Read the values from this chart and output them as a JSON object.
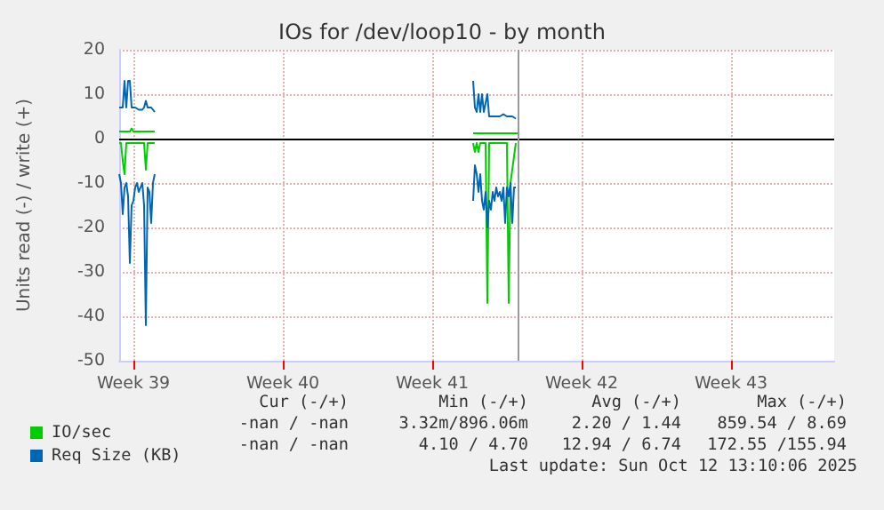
{
  "chart_data": {
    "type": "line",
    "title": "IOs for /dev/loop10 - by month",
    "ylabel": "Units read (-) / write (+)",
    "xlim": [
      "2025-09-23T20:00",
      "2025-10-27T08:00"
    ],
    "xticks": [
      {
        "value": "2025-09-24T12:00",
        "label": "Week 39"
      },
      {
        "value": "2025-10-01T12:00",
        "label": "Week 40"
      },
      {
        "value": "2025-10-08T12:00",
        "label": "Week 41"
      },
      {
        "value": "2025-10-15T12:00",
        "label": "Week 42"
      },
      {
        "value": "2025-10-22T12:00",
        "label": "Week 43"
      }
    ],
    "ylim": [
      -50,
      20
    ],
    "yticks": [
      -50,
      -40,
      -30,
      -20,
      -10,
      0,
      10,
      20
    ],
    "grid": true,
    "legend": "bottom left",
    "series": [
      {
        "name": "IO/sec",
        "color": "#00cc00",
        "x": [
          "2025-09-23T20:00",
          "2025-09-24T04:00",
          "2025-09-24T08:00",
          "2025-09-24T10:00",
          "2025-09-24T12:00",
          "2025-09-24T18:00",
          "2025-09-25T02:00",
          "2025-09-25T12:00",
          "2025-10-02T12:00",
          "2025-10-10T10:00",
          "2025-10-11T00:00",
          "2025-10-11T12:00",
          "2025-10-12T00:00",
          "2025-10-12T12:00"
        ],
        "values": [
          1.6,
          1.6,
          1.6,
          2.3,
          1.6,
          1.6,
          1.6,
          1.6,
          null,
          1.2,
          1.2,
          1.2,
          1.2,
          1.2
        ]
      },
      {
        "color": "#00cc00",
        "x": [
          "2025-09-23T20:00",
          "2025-09-23T22:00",
          "2025-09-24T00:00",
          "2025-09-24T02:00",
          "2025-09-24T04:00",
          "2025-09-24T06:00",
          "2025-09-24T10:00",
          "2025-09-24T12:00",
          "2025-09-24T18:00",
          "2025-09-25T00:00",
          "2025-09-25T02:00",
          "2025-09-25T04:00",
          "2025-09-25T12:00",
          "2025-10-02T12:00",
          "2025-10-10T10:00",
          "2025-10-10T12:00",
          "2025-10-10T14:00",
          "2025-10-10T16:00",
          "2025-10-10T18:00",
          "2025-10-10T22:00",
          "2025-10-11T00:00",
          "2025-10-11T02:00",
          "2025-10-11T04:00",
          "2025-10-11T08:00",
          "2025-10-11T18:00",
          "2025-10-12T00:00",
          "2025-10-12T02:00",
          "2025-10-12T04:00",
          "2025-10-12T10:00"
        ],
        "values": [
          -1,
          -1,
          -5,
          -8,
          -1,
          -1,
          -1,
          -1,
          -1,
          -1,
          -7,
          -1,
          -1,
          null,
          -1,
          -3,
          -1,
          -3,
          -1,
          -1,
          -1,
          -37,
          -1,
          -1,
          -1,
          -1,
          -37,
          -10,
          -1
        ]
      },
      {
        "name": "Req Size (KB)",
        "color": "#0066b3",
        "x": [
          "2025-09-23T20:00",
          "2025-09-24T00:00",
          "2025-09-24T02:00",
          "2025-09-24T04:00",
          "2025-09-24T06:00",
          "2025-09-24T08:00",
          "2025-09-24T10:00",
          "2025-09-24T14:00",
          "2025-09-24T18:00",
          "2025-09-24T22:00",
          "2025-09-25T00:00",
          "2025-09-25T02:00",
          "2025-09-25T04:00",
          "2025-09-25T08:00",
          "2025-09-25T10:00",
          "2025-09-25T12:00",
          "2025-10-02T12:00",
          "2025-10-10T10:00",
          "2025-10-10T12:00",
          "2025-10-10T14:00",
          "2025-10-10T16:00",
          "2025-10-10T18:00",
          "2025-10-10T20:00",
          "2025-10-10T22:00",
          "2025-10-11T02:00",
          "2025-10-11T04:00",
          "2025-10-11T06:00",
          "2025-10-11T12:00",
          "2025-10-11T16:00",
          "2025-10-11T20:00",
          "2025-10-12T00:00",
          "2025-10-12T06:00",
          "2025-10-12T10:00"
        ],
        "values": [
          7,
          7,
          13,
          7,
          13,
          13,
          7,
          7,
          6.5,
          6.5,
          7,
          8.5,
          7,
          7,
          6.5,
          6,
          null,
          13,
          7,
          6,
          10,
          6,
          10,
          6,
          10,
          5,
          5,
          5,
          5,
          5.5,
          5,
          5,
          4.5
        ]
      },
      {
        "color": "#0066b3",
        "x": [
          "2025-09-23T20:00",
          "2025-09-23T22:00",
          "2025-09-24T00:00",
          "2025-09-24T02:00",
          "2025-09-24T04:00",
          "2025-09-24T06:00",
          "2025-09-24T08:00",
          "2025-09-24T10:00",
          "2025-09-24T12:00",
          "2025-09-24T14:00",
          "2025-09-24T16:00",
          "2025-09-24T18:00",
          "2025-09-24T20:00",
          "2025-09-24T22:00",
          "2025-09-25T00:00",
          "2025-09-25T02:00",
          "2025-09-25T04:00",
          "2025-09-25T06:00",
          "2025-09-25T08:00",
          "2025-09-25T10:00",
          "2025-09-25T12:00",
          "2025-10-02T12:00",
          "2025-10-10T10:00",
          "2025-10-10T12:00",
          "2025-10-10T14:00",
          "2025-10-10T16:00",
          "2025-10-10T18:00",
          "2025-10-10T20:00",
          "2025-10-10T22:00",
          "2025-10-11T00:00",
          "2025-10-11T02:00",
          "2025-10-11T04:00",
          "2025-10-11T06:00",
          "2025-10-11T08:00",
          "2025-10-11T10:00",
          "2025-10-11T12:00",
          "2025-10-11T14:00",
          "2025-10-11T16:00",
          "2025-10-11T18:00",
          "2025-10-11T20:00",
          "2025-10-11T22:00",
          "2025-10-12T00:00",
          "2025-10-12T02:00",
          "2025-10-12T04:00",
          "2025-10-12T06:00",
          "2025-10-12T08:00",
          "2025-10-12T10:00"
        ],
        "values": [
          -8,
          -10,
          -17,
          -11,
          -10,
          -13,
          -28,
          -15,
          -14,
          -11,
          -10,
          -12,
          -11,
          -10,
          -15,
          -42,
          -11,
          -12,
          -19,
          -10,
          -8,
          null,
          -14,
          -6,
          -8,
          -12,
          -8,
          -14,
          -16,
          -12,
          -20,
          -14,
          -16,
          -12,
          -14,
          -11,
          -13,
          -12,
          -14,
          -11,
          -19,
          -11,
          -13,
          -10,
          -19,
          -11,
          -11
        ]
      }
    ],
    "ref_lines": [
      {
        "axis": "y",
        "value": 0,
        "color": "#000000"
      },
      {
        "axis": "x",
        "value": "2025-10-12T12:00",
        "color": "#999999"
      }
    ],
    "annotations": [
      "Cur (-/+)",
      "Min (-/+)",
      "Avg (-/+)",
      "Max (-/+)",
      "-nan / -nan",
      "3.32m/896.06m",
      "2.20 / 1.44",
      "859.54 / 8.69",
      "-nan / -nan",
      "4.10 / 4.70",
      "12.94 / 6.74",
      "172.55 /155.94",
      "Last update: Sun Oct 12 13:10:06 2025"
    ]
  }
}
